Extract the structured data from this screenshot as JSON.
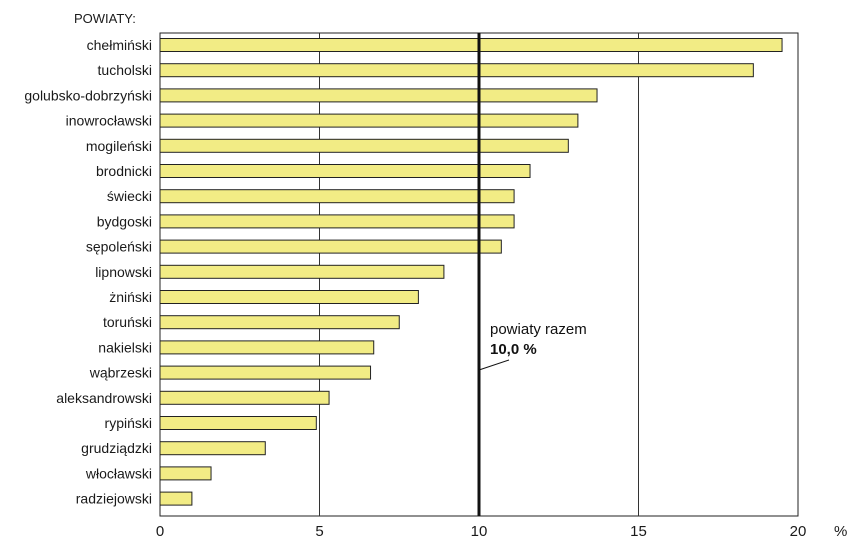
{
  "chart_data": {
    "type": "bar",
    "orientation": "horizontal",
    "category_heading": "POWIATY:",
    "categories": [
      "chełmiński",
      "tucholski",
      "golubsko-dobrzyński",
      "inowrocławski",
      "mogileński",
      "brodnicki",
      "świecki",
      "bydgoski",
      "sępoleński",
      "lipnowski",
      "żniński",
      "toruński",
      "nakielski",
      "wąbrzeski",
      "aleksandrowski",
      "rypiński",
      "grudziądzki",
      "włocławski",
      "radziejowski"
    ],
    "values": [
      19.5,
      18.6,
      13.7,
      13.1,
      12.8,
      11.6,
      11.1,
      11.1,
      10.7,
      8.9,
      8.1,
      7.5,
      6.7,
      6.6,
      5.3,
      4.9,
      3.3,
      1.6,
      1.0
    ],
    "xlim": [
      0,
      20
    ],
    "x_ticks": [
      "0",
      "5",
      "10",
      "15",
      "20"
    ],
    "x_unit": "%",
    "grid": true,
    "reference_line": {
      "value": 10.0,
      "label": "powiaty razem",
      "value_label": "10,0 %"
    },
    "colors": {
      "bar": "#f2ec85",
      "bar_stroke": "#222222",
      "grid": "#333333",
      "reference": "#111111"
    }
  }
}
